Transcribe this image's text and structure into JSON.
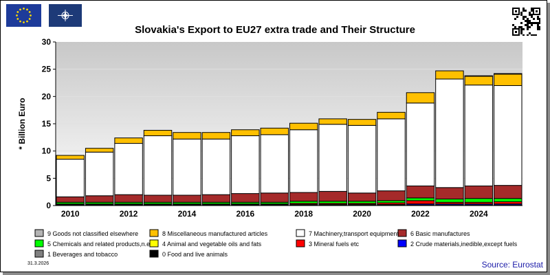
{
  "header": {
    "date": "31.3.2026",
    "source": "Source: Eurostat"
  },
  "colors": {
    "s9": "#b4b4b4",
    "s8": "#ffc000",
    "s7": "#ffffff",
    "s6": "#a52a2a",
    "s5": "#00ff00",
    "s4": "#ffff00",
    "s3": "#ff0000",
    "s2": "#0000ff",
    "s1": "#808080",
    "s0": "#000000"
  },
  "chart_data": {
    "type": "bar",
    "stacked": true,
    "title": "Slovakia's Export to EU27 extra trade and Their Structure",
    "ylabel": "* Billion Euro",
    "xlabel": "",
    "ylim": [
      0,
      30
    ],
    "yticks": [
      0,
      5,
      10,
      15,
      20,
      25,
      30
    ],
    "categories": [
      "2010",
      "2011",
      "2012",
      "2013",
      "2014",
      "2015",
      "2016",
      "2017",
      "2018",
      "2019",
      "2020",
      "2021",
      "2022",
      "2023",
      "2024",
      "2025"
    ],
    "xtick_labels": [
      "2010",
      "2012",
      "2014",
      "2016",
      "2018",
      "2020",
      "2022",
      "2024"
    ],
    "grid": true,
    "legend_position": "bottom",
    "series": [
      {
        "name": "0 Food and live animals",
        "values": [
          0.1,
          0.1,
          0.1,
          0.1,
          0.1,
          0.1,
          0.1,
          0.1,
          0.1,
          0.1,
          0.1,
          0.1,
          0.1,
          0.1,
          0.1,
          0.1
        ]
      },
      {
        "name": "1 Beverages and tobacco",
        "values": [
          0.0,
          0.0,
          0.0,
          0.0,
          0.0,
          0.0,
          0.0,
          0.0,
          0.0,
          0.0,
          0.0,
          0.0,
          0.0,
          0.0,
          0.0,
          0.0
        ]
      },
      {
        "name": "2 Crude materials,inedible,except fuels",
        "values": [
          0.1,
          0.1,
          0.1,
          0.1,
          0.1,
          0.1,
          0.1,
          0.1,
          0.1,
          0.1,
          0.1,
          0.1,
          0.2,
          0.2,
          0.2,
          0.2
        ]
      },
      {
        "name": "3 Mineral fuels etc",
        "values": [
          0.1,
          0.1,
          0.1,
          0.1,
          0.1,
          0.1,
          0.1,
          0.1,
          0.2,
          0.2,
          0.2,
          0.3,
          0.6,
          0.3,
          0.3,
          0.4
        ]
      },
      {
        "name": "4 Animal and vegetable oils and fats",
        "values": [
          0.0,
          0.0,
          0.0,
          0.0,
          0.0,
          0.0,
          0.0,
          0.0,
          0.0,
          0.0,
          0.0,
          0.0,
          0.0,
          0.0,
          0.0,
          0.0
        ]
      },
      {
        "name": "5 Chemicals and related products,n.e.s.",
        "values": [
          0.3,
          0.3,
          0.3,
          0.3,
          0.3,
          0.3,
          0.3,
          0.3,
          0.4,
          0.4,
          0.4,
          0.4,
          0.5,
          0.6,
          0.7,
          0.6
        ]
      },
      {
        "name": "6 Basic manufactures",
        "values": [
          1.0,
          1.2,
          1.4,
          1.3,
          1.3,
          1.4,
          1.6,
          1.7,
          1.6,
          1.8,
          1.5,
          1.8,
          2.2,
          2.1,
          2.3,
          2.4
        ]
      },
      {
        "name": "7 Machinery,transport equipment",
        "values": [
          6.9,
          8.0,
          9.4,
          10.9,
          10.3,
          10.2,
          10.6,
          10.7,
          11.5,
          12.3,
          12.4,
          13.2,
          15.2,
          19.9,
          18.5,
          18.3
        ]
      },
      {
        "name": "8 Miscellaneous manufactured articles",
        "values": [
          0.7,
          0.7,
          1.0,
          1.0,
          1.2,
          1.2,
          1.1,
          1.2,
          1.2,
          1.0,
          1.1,
          1.2,
          1.9,
          1.5,
          1.6,
          2.1
        ]
      },
      {
        "name": "9 Goods not classified elsewhere",
        "values": [
          0.0,
          0.0,
          0.0,
          0.0,
          0.0,
          0.0,
          0.0,
          0.0,
          0.0,
          0.0,
          0.0,
          0.0,
          0.0,
          0.0,
          0.1,
          0.1
        ]
      }
    ],
    "legend_order": [
      9,
      8,
      7,
      6,
      5,
      4,
      3,
      2,
      1,
      0
    ]
  }
}
